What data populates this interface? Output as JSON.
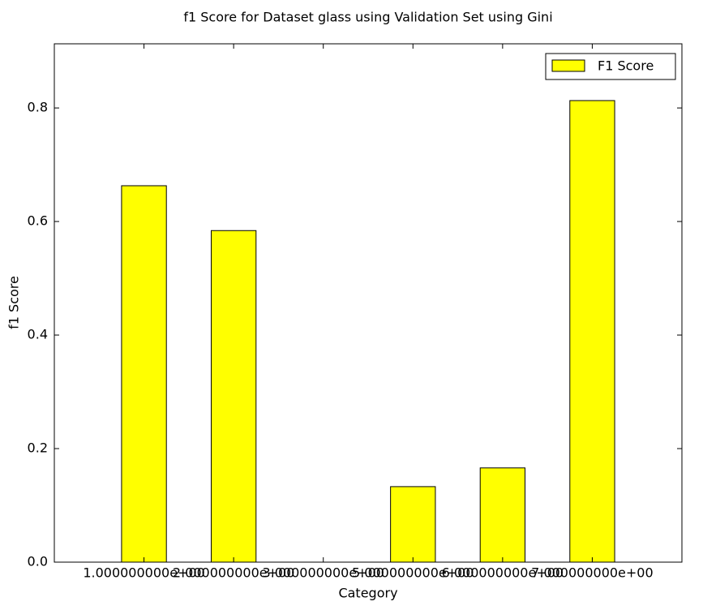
{
  "chart_data": {
    "type": "bar",
    "title": "f1 Score for Dataset glass using Validation Set using Gini",
    "x_label": "Category",
    "y_label": "f1 Score",
    "categories": [
      "1.000000000e+00",
      "2.000000000e+00",
      "3.000000000e+00",
      "5.000000000e+00",
      "6.000000000e+00",
      "7.000000000e+00"
    ],
    "series": [
      {
        "name": "F1 Score",
        "color": "#ffff00",
        "values": [
          0.663,
          0.584,
          0,
          0.133,
          0.166,
          0.813
        ]
      }
    ],
    "ylim": [
      0,
      0.913
    ],
    "yticks": [
      {
        "value": 0,
        "label": "0.0"
      },
      0.2,
      0.4,
      0.6,
      0.8
    ],
    "legend": "upper right"
  }
}
